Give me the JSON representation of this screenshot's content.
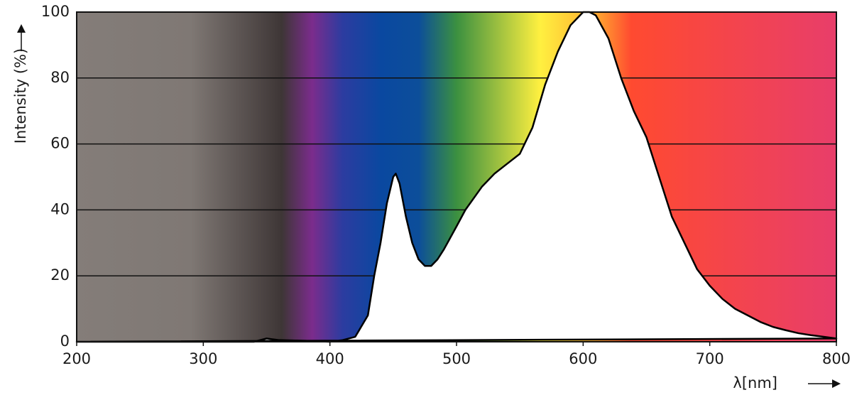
{
  "chart_data": {
    "type": "area",
    "ylabel": "Intensity (%)",
    "xlabel": "λ[nm]",
    "x": [
      200,
      340,
      350,
      360,
      380,
      400,
      410,
      420,
      430,
      435,
      440,
      445,
      450,
      452,
      455,
      460,
      465,
      470,
      475,
      480,
      485,
      490,
      500,
      507,
      520,
      530,
      540,
      550,
      560,
      570,
      580,
      590,
      600,
      605,
      610,
      620,
      630,
      640,
      650,
      660,
      670,
      680,
      690,
      700,
      710,
      720,
      730,
      740,
      750,
      760,
      770,
      780,
      790,
      800
    ],
    "values": [
      0,
      0,
      1,
      0.5,
      0.3,
      0,
      0.5,
      1.5,
      8,
      20,
      30,
      42,
      50,
      51,
      48,
      38,
      30,
      25,
      23,
      23,
      25,
      28,
      35,
      40,
      47,
      51,
      54,
      57,
      65,
      78,
      88,
      96,
      100,
      100,
      99,
      92,
      80,
      70,
      62,
      50,
      38,
      30,
      22,
      17,
      13,
      10,
      8,
      6,
      4.5,
      3.5,
      2.6,
      2,
      1.5,
      1
    ],
    "color": "#000000",
    "xlim": [
      200,
      800
    ],
    "ylim": [
      0,
      100
    ],
    "xticks": [
      200,
      300,
      400,
      500,
      600,
      700,
      800
    ],
    "yticks": [
      0,
      20,
      40,
      60,
      80,
      100
    ],
    "grid": true
  }
}
